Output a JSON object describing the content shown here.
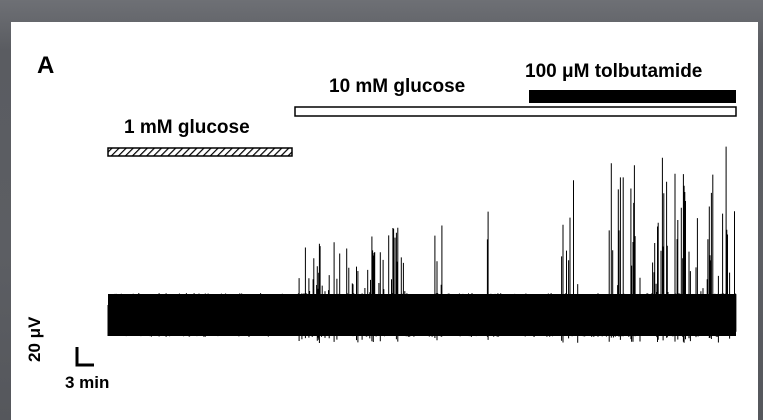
{
  "panel_label": "A",
  "conditions": [
    {
      "label": "1 mM glucose",
      "bar_style": "hatched"
    },
    {
      "label": "10 mM glucose",
      "bar_style": "open"
    },
    {
      "label": "100 μM tolbutamide",
      "bar_style": "filled"
    }
  ],
  "scale_bar": {
    "vertical_label": "20 μV",
    "horizontal_label": "3 min"
  },
  "colors": {
    "background": "#5c5e63",
    "panel": "#ffffff",
    "ink": "#000000"
  }
}
